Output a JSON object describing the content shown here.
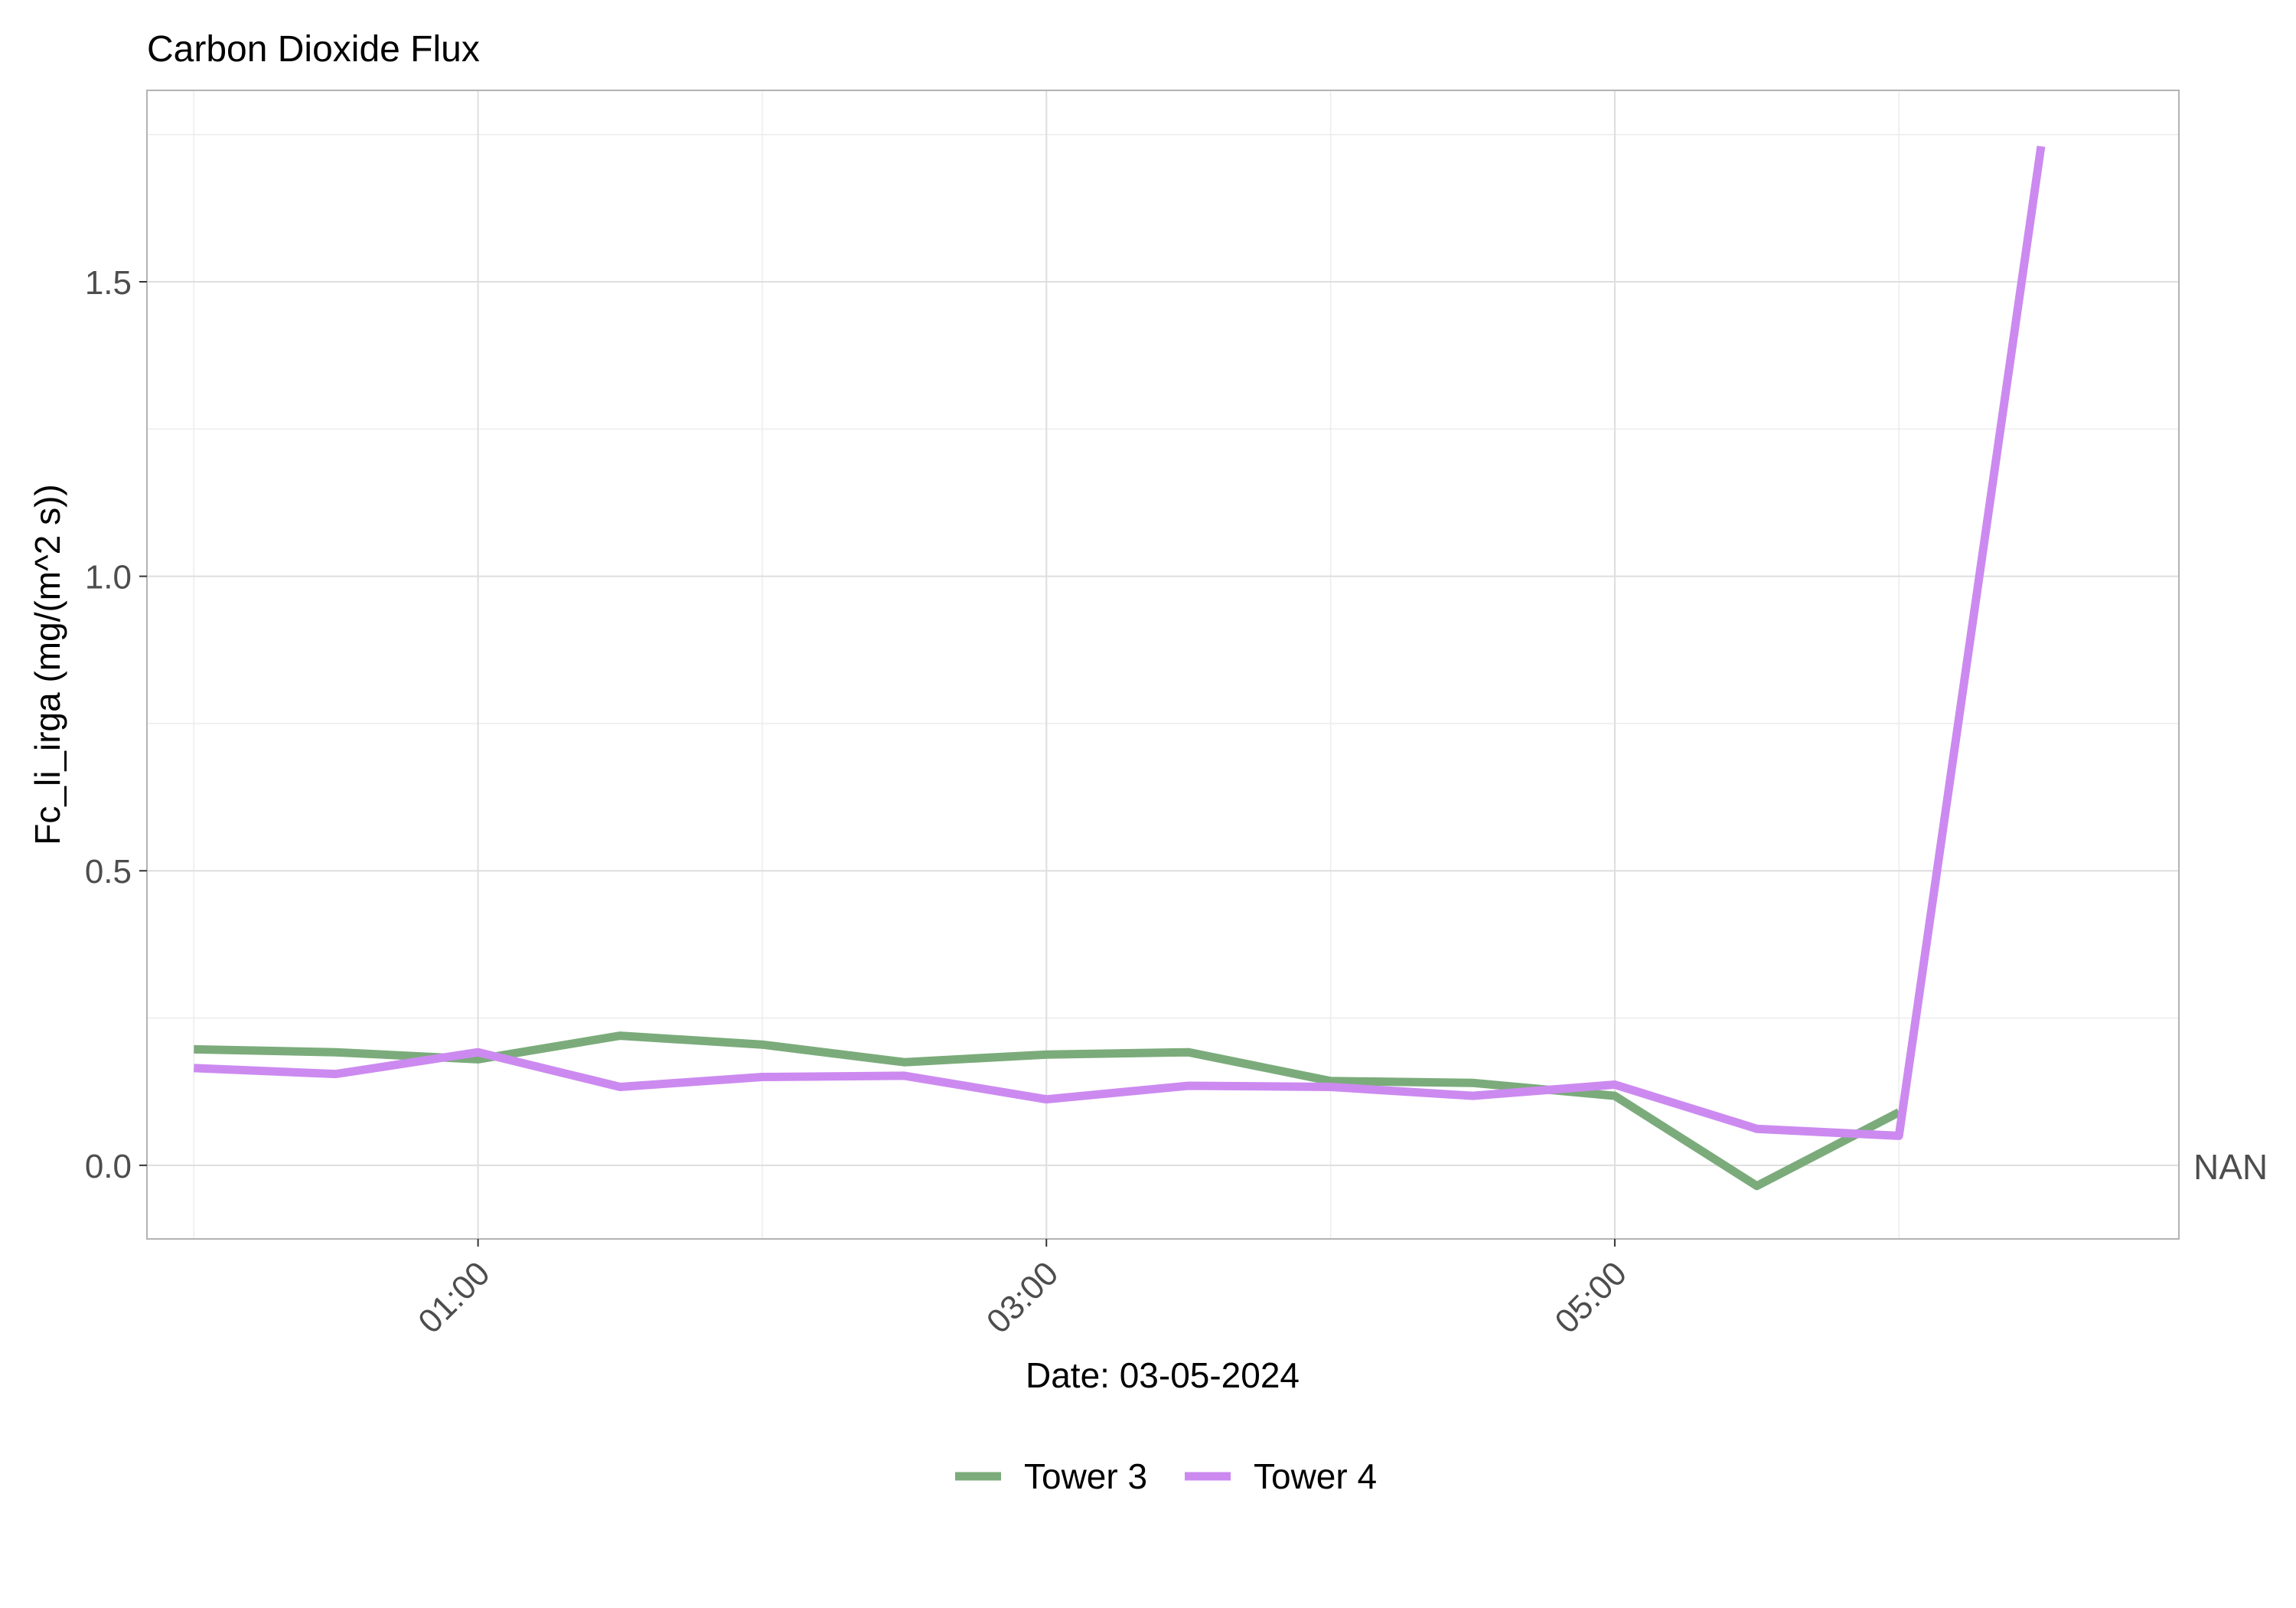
{
  "chart_data": {
    "type": "line",
    "title": "Carbon Dioxide Flux",
    "xlabel": "Date: 03-05-2024",
    "ylabel": "Fc_li_irga (mg/(m^2 s))",
    "ylim": [
      -0.125,
      1.825
    ],
    "y_ticks": [
      "0.0",
      "0.5",
      "1.0",
      "1.5"
    ],
    "x_ticks": [
      "01:00",
      "03:00",
      "05:00"
    ],
    "secondary_label": "NAN",
    "grid": true,
    "legend_position": "bottom",
    "series": [
      {
        "name": "Tower 3",
        "color": "#7bab7b",
        "points": [
          [
            "00:00",
            0.197
          ],
          [
            "00:30",
            0.192
          ],
          [
            "01:00",
            0.18
          ],
          [
            "01:30",
            0.22
          ],
          [
            "02:00",
            0.205
          ],
          [
            "02:30",
            0.175
          ],
          [
            "03:00",
            0.188
          ],
          [
            "03:30",
            0.192
          ],
          [
            "04:00",
            0.143
          ],
          [
            "04:30",
            0.14
          ],
          [
            "05:00",
            0.118
          ],
          [
            "05:30",
            -0.035
          ],
          [
            "06:00",
            0.09
          ]
        ]
      },
      {
        "name": "Tower 4",
        "color": "#cc8af0",
        "points": [
          [
            "00:00",
            0.165
          ],
          [
            "00:30",
            0.155
          ],
          [
            "01:00",
            0.192
          ],
          [
            "01:30",
            0.133
          ],
          [
            "02:00",
            0.15
          ],
          [
            "02:30",
            0.152
          ],
          [
            "03:00",
            0.112
          ],
          [
            "03:30",
            0.135
          ],
          [
            "04:00",
            0.133
          ],
          [
            "04:30",
            0.118
          ],
          [
            "05:00",
            0.137
          ],
          [
            "05:30",
            0.062
          ],
          [
            "06:00",
            0.05
          ],
          [
            "06:30",
            1.73
          ]
        ]
      }
    ]
  }
}
